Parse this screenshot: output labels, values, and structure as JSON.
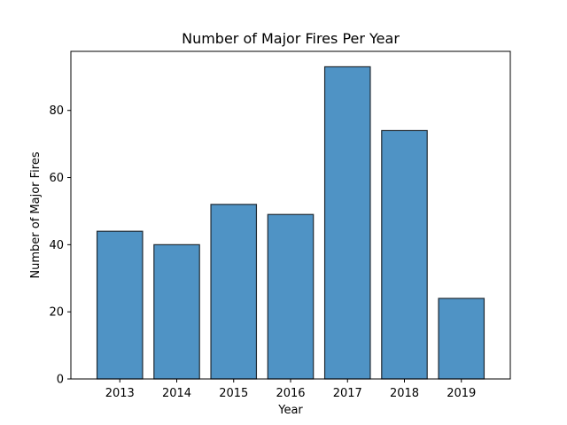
{
  "chart_data": {
    "type": "bar",
    "title": "Number of Major Fires Per Year",
    "xlabel": "Year",
    "ylabel": "Number of Major Fires",
    "categories": [
      "2013",
      "2014",
      "2015",
      "2016",
      "2017",
      "2018",
      "2019"
    ],
    "values": [
      44,
      40,
      52,
      49,
      93,
      74,
      24
    ],
    "ylim": [
      0,
      97.6
    ],
    "yticks": [
      0,
      20,
      40,
      60,
      80
    ],
    "grid": false,
    "bar_color": "#4f93c5",
    "edge_color": "#1f2a33"
  }
}
